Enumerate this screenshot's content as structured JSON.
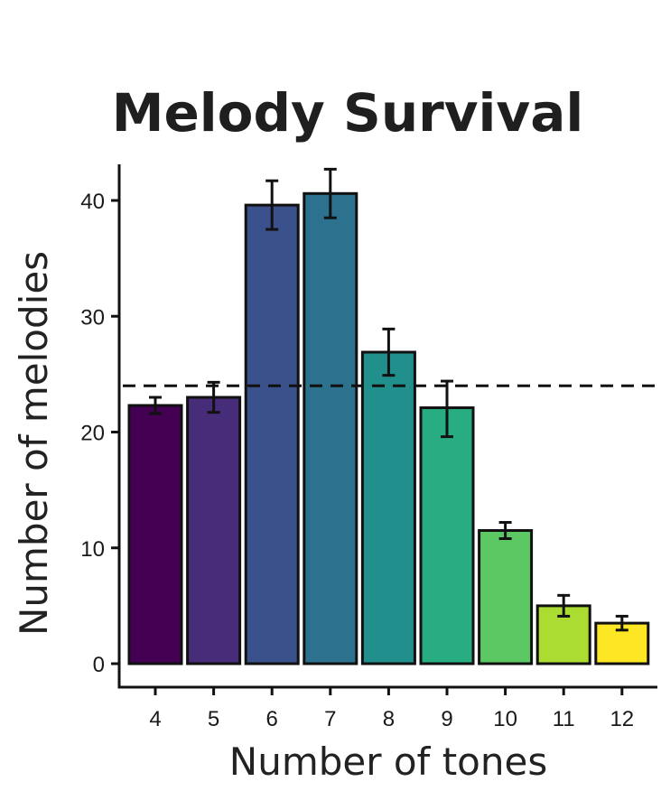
{
  "chart_data": {
    "type": "bar",
    "title": "Melody Survival",
    "xlabel": "Number of tones",
    "ylabel": "Number of melodies",
    "categories": [
      "4",
      "5",
      "6",
      "7",
      "8",
      "9",
      "10",
      "11",
      "12"
    ],
    "values": [
      22.3,
      23.0,
      39.6,
      40.6,
      26.9,
      22.1,
      11.5,
      5.0,
      3.5
    ],
    "error_low": [
      21.6,
      21.7,
      37.5,
      38.5,
      24.9,
      19.6,
      10.8,
      4.1,
      2.9
    ],
    "error_high": [
      23.0,
      24.3,
      41.7,
      42.7,
      28.9,
      24.4,
      12.2,
      5.9,
      4.1
    ],
    "colors": [
      "#440154",
      "#472c7a",
      "#3b518b",
      "#2c718e",
      "#21908d",
      "#27ad81",
      "#5cc863",
      "#aadc32",
      "#fde725"
    ],
    "reference_line": {
      "value": 24,
      "style": "dashed"
    },
    "ylim": [
      -2,
      43
    ],
    "yticks": [
      0,
      10,
      20,
      30,
      40
    ],
    "grid": false,
    "legend": "none"
  }
}
